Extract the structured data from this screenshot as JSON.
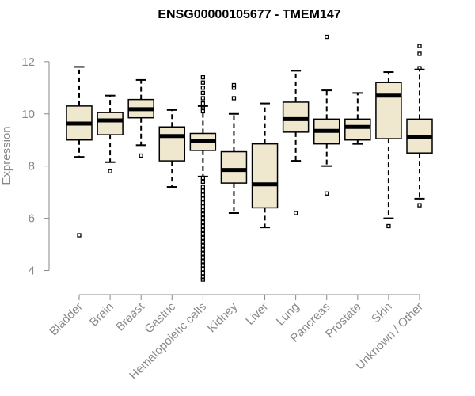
{
  "chart_data": {
    "type": "boxplot",
    "title": "ENSG00000105677 - TMEM147",
    "ylabel": "Expression",
    "xlabel": "",
    "ylim": [
      3.5,
      13.3
    ],
    "yticks": [
      4,
      6,
      8,
      10,
      12
    ],
    "grid": false,
    "box_color": "#efe8cf",
    "categories": [
      "Bladder",
      "Brain",
      "Breast",
      "Gastric",
      "Hematopoietic cells",
      "Kidney",
      "Liver",
      "Lung",
      "Pancreas",
      "Prostate",
      "Skin",
      "Unknown / Other"
    ],
    "boxes": [
      {
        "min": 8.35,
        "q1": 9.0,
        "median": 9.63,
        "q3": 10.3,
        "max": 11.8,
        "outliers": [
          5.35
        ]
      },
      {
        "min": 8.15,
        "q1": 9.2,
        "median": 9.75,
        "q3": 10.05,
        "max": 10.7,
        "outliers": [
          7.8
        ]
      },
      {
        "min": 8.8,
        "q1": 9.85,
        "median": 10.18,
        "q3": 10.55,
        "max": 11.3,
        "outliers": [
          8.4
        ]
      },
      {
        "min": 7.2,
        "q1": 8.2,
        "median": 9.15,
        "q3": 9.5,
        "max": 10.15,
        "outliers": []
      },
      {
        "min": 7.6,
        "q1": 8.6,
        "median": 8.95,
        "q3": 9.25,
        "max": 10.3,
        "outliers": [
          11.4,
          11.2,
          11.0,
          10.8,
          10.6,
          10.4,
          10.25,
          10.1,
          7.55,
          7.4,
          7.2,
          7.05,
          6.9,
          6.75,
          6.6,
          6.45,
          6.3,
          6.15,
          6.0,
          5.85,
          5.7,
          5.55,
          5.4,
          5.25,
          5.1,
          4.95,
          4.8,
          4.65,
          4.5,
          4.35,
          4.2,
          4.05,
          3.9,
          3.75,
          3.65
        ]
      },
      {
        "min": 6.2,
        "q1": 7.35,
        "median": 7.85,
        "q3": 8.55,
        "max": 10.0,
        "outliers": [
          11.1,
          11.0,
          10.6
        ]
      },
      {
        "min": 5.65,
        "q1": 6.4,
        "median": 7.3,
        "q3": 8.85,
        "max": 10.4,
        "outliers": []
      },
      {
        "min": 8.2,
        "q1": 9.3,
        "median": 9.8,
        "q3": 10.45,
        "max": 11.65,
        "outliers": [
          6.2
        ]
      },
      {
        "min": 8.0,
        "q1": 8.85,
        "median": 9.35,
        "q3": 9.8,
        "max": 10.9,
        "outliers": [
          12.95,
          6.95
        ]
      },
      {
        "min": 8.85,
        "q1": 9.0,
        "median": 9.5,
        "q3": 9.8,
        "max": 10.8,
        "outliers": []
      },
      {
        "min": 6.0,
        "q1": 9.05,
        "median": 10.7,
        "q3": 11.2,
        "max": 11.6,
        "outliers": [
          5.7
        ]
      },
      {
        "min": 6.75,
        "q1": 8.5,
        "median": 9.1,
        "q3": 9.8,
        "max": 11.7,
        "outliers": [
          12.6,
          12.3,
          11.75,
          6.5
        ]
      }
    ]
  }
}
